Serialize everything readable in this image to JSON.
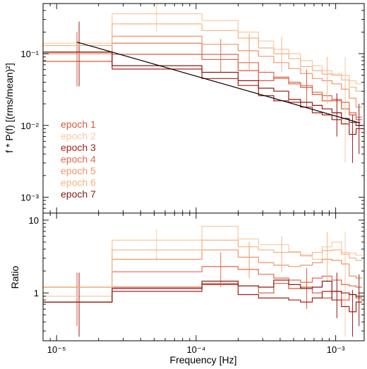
{
  "chart_data": [
    {
      "type": "line",
      "xscale": "log",
      "yscale": "log",
      "xlim": [
        8e-06,
        0.0016
      ],
      "ylim": [
        0.0006,
        0.5
      ],
      "xlabel": "",
      "ylabel": "f * P(f) [(rms/mean)²]",
      "x_ticks": [
        {
          "value": 1e-05,
          "label": "10⁻⁵"
        },
        {
          "value": 0.0001,
          "label": "10⁻⁴"
        },
        {
          "value": 0.001,
          "label": "10⁻³"
        }
      ],
      "y_ticks": [
        {
          "value": 0.001,
          "label": "10⁻³"
        },
        {
          "value": 0.01,
          "label": "10⁻²"
        },
        {
          "value": 0.1,
          "label": "10⁻¹"
        }
      ],
      "bin_edges": [
        8e-06,
        2.5e-05,
        0.00011,
        0.0002,
        0.00028,
        0.00036,
        0.00046,
        0.00056,
        0.00068,
        0.0008,
        0.00094,
        0.0011,
        0.00125,
        0.0014,
        0.00155
      ],
      "legend_position": "left-middle",
      "series": [
        {
          "name": "epoch 1",
          "color": "#d65a3a",
          "values": [
            0.078,
            0.098,
            0.083,
            0.058,
            0.042,
            0.047,
            0.038,
            0.034,
            0.027,
            0.022,
            0.023,
            0.017,
            0.014,
            0.012
          ],
          "errors": [
            {
              "bin": 0,
              "x": 1.4e-05,
              "y": 0.078,
              "lo": 0.035,
              "hi": 0.2
            },
            {
              "bin": 7,
              "x": 0.00062,
              "y": 0.034,
              "lo": 0.018,
              "hi": 0.06
            }
          ]
        },
        {
          "name": "epoch 2",
          "color": "#f7c9a3",
          "values": [
            0.14,
            0.36,
            0.29,
            0.2,
            0.15,
            0.115,
            0.1,
            0.08,
            0.068,
            0.058,
            0.052,
            0.05,
            0.042,
            0.038
          ],
          "errors": [
            {
              "bin": 1,
              "x": 5.2e-05,
              "y": 0.36,
              "lo": 0.2,
              "hi": 0.5
            },
            {
              "bin": 11,
              "x": 0.00117,
              "y": 0.05,
              "lo": 0.003,
              "hi": 0.09
            }
          ]
        },
        {
          "name": "epoch 3",
          "color": "#a81e1a",
          "values": [
            0.105,
            0.061,
            0.045,
            0.036,
            0.026,
            0.022,
            0.021,
            0.018,
            0.015,
            0.014,
            0.012,
            0.0105,
            0.0075,
            0.009
          ],
          "errors": [
            {
              "bin": 0,
              "x": 1.45e-05,
              "y": 0.105,
              "lo": 0.035,
              "hi": 0.28
            },
            {
              "bin": 12,
              "x": 0.00132,
              "y": 0.0075,
              "lo": 0.003,
              "hi": 0.014
            }
          ]
        },
        {
          "name": "epoch 4",
          "color": "#e16a4a",
          "values": [
            0.1,
            0.14,
            0.098,
            0.075,
            0.055,
            0.045,
            0.04,
            0.036,
            0.029,
            0.026,
            0.022,
            0.021,
            0.015,
            0.013
          ],
          "errors": [
            {
              "bin": 2,
              "x": 0.00015,
              "y": 0.098,
              "lo": 0.055,
              "hi": 0.16
            }
          ]
        },
        {
          "name": "epoch 5",
          "color": "#f0966a",
          "values": [
            0.1,
            0.175,
            0.135,
            0.11,
            0.092,
            0.075,
            0.062,
            0.053,
            0.045,
            0.042,
            0.038,
            0.032,
            0.024,
            0.018
          ],
          "errors": [
            {
              "bin": 3,
              "x": 0.00024,
              "y": 0.11,
              "lo": 0.06,
              "hi": 0.19
            }
          ]
        },
        {
          "name": "epoch 6",
          "color": "#f5b284",
          "values": [
            0.13,
            0.26,
            0.21,
            0.165,
            0.12,
            0.1,
            0.085,
            0.066,
            0.058,
            0.052,
            0.05,
            0.043,
            0.034,
            0.03
          ],
          "errors": [
            {
              "bin": 5,
              "x": 0.00041,
              "y": 0.1,
              "lo": 0.055,
              "hi": 0.17
            },
            {
              "bin": 9,
              "x": 0.00087,
              "y": 0.052,
              "lo": 0.02,
              "hi": 0.09
            }
          ]
        },
        {
          "name": "epoch 7",
          "color": "#8a1a14",
          "values": [
            0.105,
            0.068,
            0.055,
            0.042,
            0.033,
            0.03,
            0.023,
            0.021,
            0.019,
            0.017,
            0.015,
            0.0125,
            0.011,
            0.01
          ],
          "errors": [
            {
              "bin": 10,
              "x": 0.00102,
              "y": 0.015,
              "lo": 0.007,
              "hi": 0.028
            },
            {
              "bin": 13,
              "x": 0.00147,
              "y": 0.01,
              "lo": 0.004,
              "hi": 0.02
            }
          ]
        }
      ],
      "model_line": {
        "color": "#000000",
        "points": [
          [
            1.4e-05,
            0.145
          ],
          [
            0.0015,
            0.0108
          ]
        ]
      }
    },
    {
      "type": "line",
      "xscale": "log",
      "yscale": "log",
      "xlim": [
        8e-06,
        0.0016
      ],
      "ylim": [
        0.22,
        12.5
      ],
      "xlabel": "Frequency [Hz]",
      "ylabel": "Ratio",
      "x_ticks": [
        {
          "value": 1e-05,
          "label": "10⁻⁵"
        },
        {
          "value": 0.0001,
          "label": "10⁻⁴"
        },
        {
          "value": 0.001,
          "label": "10⁻³"
        }
      ],
      "y_ticks": [
        {
          "value": 1,
          "label": "1"
        },
        {
          "value": 10,
          "label": "10"
        }
      ],
      "bin_edges": [
        8e-06,
        2.5e-05,
        0.00011,
        0.0002,
        0.00028,
        0.00036,
        0.00046,
        0.00056,
        0.00068,
        0.0008,
        0.00094,
        0.0011,
        0.00125,
        0.0014,
        0.00155
      ],
      "series": [
        {
          "name": "epoch 1",
          "color": "#d65a3a",
          "values": [
            0.75,
            1.2,
            1.35,
            1.25,
            1.0,
            1.35,
            1.15,
            1.2,
            1.0,
            0.85,
            1.05,
            0.8,
            0.95,
            0.85
          ],
          "errors": [
            {
              "bin": 0,
              "x": 1.4e-05,
              "y": 0.75,
              "lo": 0.35,
              "hi": 1.9
            },
            {
              "bin": 7,
              "x": 0.00062,
              "y": 1.2,
              "lo": 0.6,
              "hi": 2.2
            }
          ]
        },
        {
          "name": "epoch 2",
          "color": "#f7c9a3",
          "values": [
            0.9,
            5.3,
            8.2,
            5.5,
            4.6,
            4.6,
            3.7,
            3.2,
            2.9,
            4.3,
            5.0,
            3.6,
            3.5,
            3.3
          ],
          "errors": [
            {
              "bin": 1,
              "x": 5.2e-05,
              "y": 5.3,
              "lo": 2.7,
              "hi": 7.5
            },
            {
              "bin": 11,
              "x": 0.00117,
              "y": 3.6,
              "lo": 0.25,
              "hi": 7.0
            }
          ]
        },
        {
          "name": "epoch 3",
          "color": "#a81e1a",
          "values": [
            0.75,
            1.05,
            1.3,
            0.95,
            0.85,
            0.85,
            0.8,
            0.75,
            0.85,
            1.05,
            0.8,
            0.65,
            0.55,
            0.75
          ],
          "errors": [
            {
              "bin": 0,
              "x": 1.45e-05,
              "y": 0.75,
              "lo": 0.25,
              "hi": 1.9
            },
            {
              "bin": 12,
              "x": 0.00132,
              "y": 0.55,
              "lo": 0.25,
              "hi": 1.1
            }
          ]
        },
        {
          "name": "epoch 4",
          "color": "#e16a4a",
          "values": [
            1.2,
            1.95,
            2.3,
            2.1,
            1.8,
            1.6,
            1.5,
            1.4,
            1.6,
            1.7,
            1.5,
            1.3,
            1.25,
            1.2
          ],
          "errors": [
            {
              "bin": 2,
              "x": 0.00015,
              "y": 2.3,
              "lo": 1.2,
              "hi": 3.6
            }
          ]
        },
        {
          "name": "epoch 5",
          "color": "#f0966a",
          "values": [
            1.2,
            2.9,
            3.9,
            3.1,
            2.6,
            2.4,
            2.3,
            2.4,
            2.6,
            2.9,
            2.8,
            2.5,
            1.7,
            1.6
          ],
          "errors": [
            {
              "bin": 3,
              "x": 0.00024,
              "y": 3.1,
              "lo": 1.6,
              "hi": 5.0
            }
          ]
        },
        {
          "name": "epoch 6",
          "color": "#f5b284",
          "values": [
            1.2,
            3.9,
            5.3,
            4.3,
            3.9,
            3.6,
            3.6,
            3.3,
            3.6,
            3.8,
            3.9,
            3.4,
            3.0,
            2.8
          ],
          "errors": [
            {
              "bin": 5,
              "x": 0.00041,
              "y": 3.6,
              "lo": 1.9,
              "hi": 6.0
            },
            {
              "bin": 9,
              "x": 0.00087,
              "y": 3.8,
              "lo": 1.4,
              "hi": 6.8
            }
          ]
        },
        {
          "name": "epoch 7",
          "color": "#8a1a14",
          "values": [
            0.75,
            1.15,
            1.45,
            1.25,
            1.2,
            1.5,
            1.3,
            1.15,
            1.2,
            1.45,
            1.05,
            1.0,
            0.95,
            0.9
          ],
          "errors": [
            {
              "bin": 10,
              "x": 0.00102,
              "y": 1.05,
              "lo": 0.45,
              "hi": 1.9
            },
            {
              "bin": 13,
              "x": 0.00147,
              "y": 0.9,
              "lo": 0.35,
              "hi": 1.8
            }
          ]
        }
      ]
    }
  ]
}
